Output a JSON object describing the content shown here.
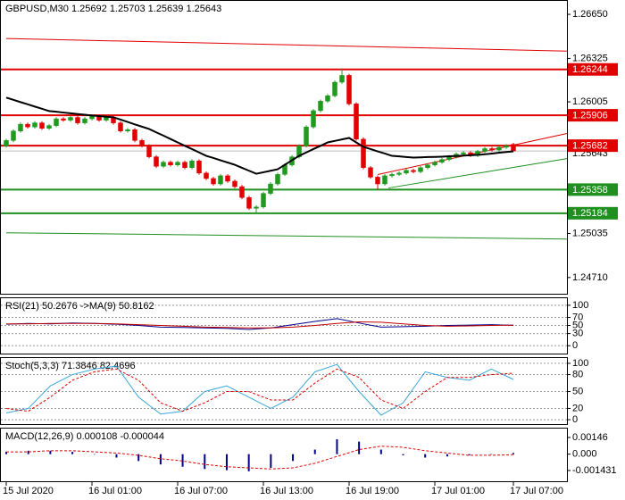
{
  "chart_data": [
    {
      "type": "candlestick",
      "title": "GBPUSD,M30",
      "categories": [
        "15 Jul 2020",
        null,
        null,
        null,
        null,
        null,
        null,
        null,
        null,
        null,
        null,
        null,
        "16 Jul 01:00",
        null,
        null,
        null,
        null,
        null,
        null,
        null,
        null,
        null,
        null,
        null,
        "16 Jul 07:00",
        null,
        null,
        null,
        null,
        null,
        null,
        null,
        null,
        null,
        null,
        null,
        "16 Jul 13:00",
        null,
        null,
        null,
        null,
        null,
        null,
        null,
        null,
        null,
        null,
        null,
        "16 Jul 19:00",
        null,
        null,
        null,
        null,
        null,
        null,
        null,
        null,
        null,
        null,
        null,
        "17 Jul 01:00",
        null,
        null,
        null,
        null,
        null,
        null,
        null,
        null,
        null,
        null,
        "17 Jul 07:00"
      ],
      "open": [
        1.2568,
        1.2572,
        1.2579,
        1.2584,
        1.2582,
        1.2585,
        1.2581,
        1.2583,
        1.2588,
        1.2587,
        1.2589,
        1.2585,
        1.2588,
        1.259,
        1.2587,
        1.2589,
        1.2585,
        1.2579,
        1.258,
        1.2572,
        1.2568,
        1.256,
        1.2553,
        1.2556,
        1.2554,
        1.2556,
        1.2552,
        1.2557,
        1.2548,
        1.2544,
        1.254,
        1.2546,
        1.2542,
        1.2538,
        1.253,
        1.2522,
        1.2523,
        1.2533,
        1.254,
        1.2547,
        1.2554,
        1.256,
        1.2568,
        1.2582,
        1.2594,
        1.2601,
        1.2605,
        1.2615,
        1.262,
        1.2599,
        1.2573,
        1.2552,
        1.2545,
        1.254,
        1.2546,
        1.2547,
        1.2548,
        1.255,
        1.2549,
        1.2552,
        1.2554,
        1.2556,
        1.2558,
        1.256,
        1.2562,
        1.2563,
        1.2561,
        1.2564,
        1.2566,
        1.2565,
        1.2567,
        1.25692
      ],
      "high": [
        1.25732,
        1.25802,
        1.25852,
        1.25852,
        1.25862,
        1.25862,
        1.25842,
        1.25892,
        1.25892,
        1.25902,
        1.25902,
        1.25892,
        1.25912,
        1.25912,
        1.25902,
        1.25902,
        1.25862,
        1.25812,
        1.25812,
        1.25732,
        1.25692,
        1.25612,
        1.25572,
        1.25572,
        1.25572,
        1.25572,
        1.25582,
        1.25582,
        1.25492,
        1.25452,
        1.25472,
        1.25472,
        1.25432,
        1.25392,
        1.25312,
        1.25242,
        1.25342,
        1.25412,
        1.25482,
        1.25552,
        1.25612,
        1.25692,
        1.25832,
        1.25952,
        1.26022,
        1.26062,
        1.26162,
        1.26252,
        1.26212,
        1.26002,
        1.25742,
        1.25532,
        1.25462,
        1.25472,
        1.25482,
        1.25492,
        1.25512,
        1.25512,
        1.25532,
        1.25552,
        1.25572,
        1.25592,
        1.25612,
        1.25632,
        1.25642,
        1.25642,
        1.25652,
        1.25672,
        1.25672,
        1.25682,
        1.25692,
        1.25703
      ],
      "low": [
        1.25668,
        1.25708,
        1.25778,
        1.25808,
        1.25808,
        1.25798,
        1.25798,
        1.25818,
        1.25858,
        1.25858,
        1.25838,
        1.25838,
        1.25868,
        1.25858,
        1.25858,
        1.25838,
        1.25778,
        1.25778,
        1.25708,
        1.25668,
        1.25588,
        1.25518,
        1.25518,
        1.25528,
        1.25528,
        1.25508,
        1.25508,
        1.25468,
        1.25428,
        1.25388,
        1.25388,
        1.25408,
        1.25368,
        1.25288,
        1.25208,
        1.25184,
        1.25218,
        1.25318,
        1.25388,
        1.25458,
        1.25528,
        1.25588,
        1.25668,
        1.25808,
        1.25928,
        1.25998,
        1.26038,
        1.26138,
        1.25978,
        1.25718,
        1.25508,
        1.25438,
        1.25358,
        1.25388,
        1.25448,
        1.25458,
        1.25468,
        1.25478,
        1.25478,
        1.25508,
        1.25528,
        1.25548,
        1.25568,
        1.25588,
        1.25608,
        1.25598,
        1.25598,
        1.25628,
        1.25638,
        1.25638,
        1.25658,
        1.25639
      ],
      "close": [
        1.2572,
        1.2579,
        1.2584,
        1.2582,
        1.2585,
        1.2581,
        1.2583,
        1.2588,
        1.2587,
        1.2589,
        1.2585,
        1.2588,
        1.259,
        1.2587,
        1.2589,
        1.2585,
        1.2579,
        1.258,
        1.2572,
        1.2568,
        1.256,
        1.2553,
        1.2556,
        1.2554,
        1.2556,
        1.2552,
        1.2557,
        1.2548,
        1.2544,
        1.254,
        1.2546,
        1.2542,
        1.2538,
        1.253,
        1.2522,
        1.2523,
        1.2533,
        1.254,
        1.2547,
        1.2554,
        1.256,
        1.2568,
        1.2582,
        1.2594,
        1.2601,
        1.2605,
        1.2615,
        1.262,
        1.2599,
        1.2573,
        1.2552,
        1.2545,
        1.254,
        1.2546,
        1.2547,
        1.2548,
        1.255,
        1.2549,
        1.2552,
        1.2554,
        1.2556,
        1.2558,
        1.256,
        1.2562,
        1.2563,
        1.2561,
        1.2564,
        1.2566,
        1.2565,
        1.2567,
        1.2568,
        1.25643
      ],
      "up_color": "#1f9a1f",
      "down_color": "#e00000",
      "ma": {
        "color": "#000000",
        "values": [
          1.26036,
          1.2602,
          1.26003,
          1.25987,
          1.2597,
          1.25954,
          1.25937,
          1.25932,
          1.25926,
          1.25921,
          1.25915,
          1.2591,
          1.25904,
          1.259,
          1.25895,
          1.25891,
          1.25874,
          1.25857,
          1.25839,
          1.25822,
          1.25805,
          1.2578,
          1.25756,
          1.25731,
          1.25706,
          1.25681,
          1.25657,
          1.25632,
          1.25607,
          1.25591,
          1.25574,
          1.25558,
          1.25541,
          1.25519,
          1.25497,
          1.25475,
          1.25486,
          1.25497,
          1.25508,
          1.25541,
          1.25574,
          1.25607,
          1.25632,
          1.25657,
          1.25681,
          1.25706,
          1.25717,
          1.25728,
          1.25739,
          1.25706,
          1.25673,
          1.25657,
          1.2564,
          1.25624,
          1.25607,
          1.25603,
          1.25598,
          1.25594,
          1.25596,
          1.25598,
          1.25599,
          1.25601,
          1.25604,
          1.25606,
          1.25609,
          1.25611,
          1.25614,
          1.25619,
          1.25624,
          1.2563,
          1.25635,
          1.2564
        ]
      },
      "levels": [
        {
          "value": 1.26244,
          "color": "#e00000"
        },
        {
          "value": 1.25906,
          "color": "#e00000"
        },
        {
          "value": 1.25682,
          "color": "#e00000"
        },
        {
          "value": 1.25358,
          "color": "#1f8f1f"
        },
        {
          "value": 1.25184,
          "color": "#1f8f1f"
        }
      ],
      "trendlines": [
        {
          "color": "#e00000",
          "points": [
            [
              0,
              1.26472
            ],
            [
              78.5,
              1.26379
            ]
          ]
        },
        {
          "color": "#1f8f1f",
          "points": [
            [
              0,
              1.2504
            ],
            [
              78.5,
              1.24994
            ]
          ]
        },
        {
          "color": "#e00000",
          "points": [
            [
              52,
              1.25469
            ],
            [
              78.5,
              1.25772
            ]
          ]
        },
        {
          "color": "#1f8f1f",
          "points": [
            [
              53.5,
              1.2537
            ],
            [
              78.5,
              1.25587
            ]
          ]
        }
      ],
      "ylim": [
        1.24584,
        1.26749
      ],
      "yticks": [
        {
          "value": 1.2665,
          "label": "1.26650"
        },
        1.26325,
        1.26005,
        1.25035,
        {
          "value": 1.2471,
          "label": "1.24710"
        }
      ]
    },
    {
      "type": "line",
      "title": "RSI(21)",
      "series": [
        {
          "color": "#00008b",
          "values": [
            53,
            55,
            54,
            56,
            55,
            53,
            50,
            46,
            45,
            44,
            43,
            40,
            44,
            52,
            60,
            67,
            56,
            46,
            47,
            48,
            50,
            51,
            52,
            50.2676
          ]
        },
        {
          "name": "->MA(9)",
          "color": "#c00000",
          "values": [
            54,
            54,
            55,
            55,
            55,
            54,
            52,
            50,
            48,
            46,
            45,
            44,
            44,
            46,
            50,
            55,
            59,
            58,
            54,
            50,
            48,
            49,
            50,
            50.8162
          ]
        }
      ],
      "ylim": [
        -21.7,
        117.4
      ],
      "yticks": [
        100,
        70,
        50,
        30,
        0
      ],
      "grid": true
    },
    {
      "type": "line",
      "title": "Stoch(5,3,3)",
      "series": [
        {
          "color": "#3aa6d8",
          "values": [
            12,
            20,
            60,
            80,
            90,
            95,
            40,
            10,
            15,
            50,
            60,
            40,
            20,
            40,
            85,
            98,
            50,
            8,
            30,
            85,
            75,
            70,
            90,
            71.3846
          ]
        },
        {
          "color": "#e00000",
          "dashed": true,
          "values": [
            20,
            15,
            40,
            70,
            85,
            90,
            70,
            30,
            15,
            30,
            50,
            50,
            35,
            35,
            65,
            90,
            75,
            35,
            20,
            50,
            75,
            75,
            80,
            82.4696
          ]
        }
      ],
      "ylim": [
        -9.4,
        109.4
      ],
      "yticks": [
        100,
        80,
        50,
        20,
        0
      ],
      "grid": true
    },
    {
      "type": "macd",
      "title": "MACD(12,26,9)",
      "series": [
        {
          "type": "bar",
          "color": "#00008b",
          "values": [
            0.0002,
            0.0003,
            0.0003,
            0.0002,
            0.0,
            -0.0003,
            -0.0006,
            -0.0009,
            -0.0011,
            -0.0013,
            -0.0014,
            -0.0015,
            -0.0012,
            -0.0006,
            0.0004,
            0.0013,
            0.0011,
            0.0004,
            -0.0001,
            -0.0003,
            -0.0002,
            -0.0001,
            0.0,
            0.000108
          ]
        },
        {
          "type": "line",
          "color": "#e00000",
          "dashed": true,
          "values": [
            0.0002,
            0.0002,
            0.0003,
            0.0003,
            0.0002,
            0.0001,
            -0.0001,
            -0.0004,
            -0.0006,
            -0.0009,
            -0.0011,
            -0.0012,
            -0.0013,
            -0.0012,
            -0.0008,
            -0.0002,
            0.0004,
            0.0007,
            0.0006,
            0.0003,
            0.0001,
            -0.0001,
            -0.0001,
            -4.4e-05
          ]
        }
      ],
      "ylim": [
        -0.00245,
        0.00224
      ],
      "yticks": [
        0.00146,
        {
          "value": 0,
          "label": "0.000"
        },
        -0.001431
      ]
    }
  ]
}
